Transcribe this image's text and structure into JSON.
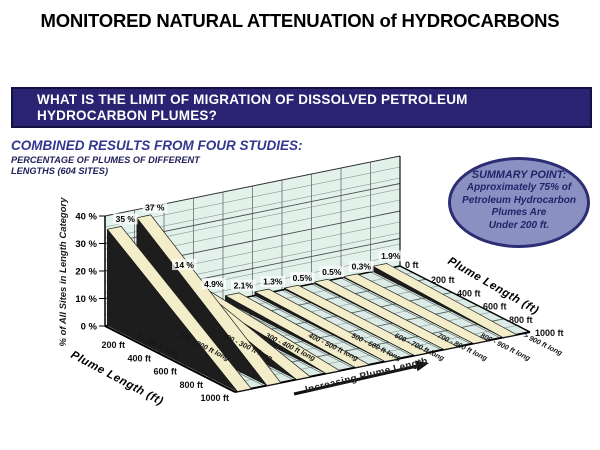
{
  "slide": {
    "title": "MONITORED NATURAL ATTENUATION of HYDROCARBONS",
    "question_banner": {
      "line1": "WHAT IS THE LIMIT OF MIGRATION OF DISSOLVED PETROLEUM",
      "line2": "HYDROCARBON PLUMES?",
      "bg_color": "#2a2372",
      "text_color": "#ffffff"
    },
    "subtitle": "COMBINED RESULTS FROM FOUR STUDIES:",
    "chart_heading_line1": "PERCENTAGE OF PLUMES OF DIFFERENT",
    "chart_heading_line2": "LENGTHS (604 SITES)",
    "summary_callout": {
      "lines": [
        "SUMMARY POINT:",
        "Approximately 75% of",
        "Petroleum Hydrocarbon",
        "Plumes Are",
        "Under 200 ft."
      ],
      "fill": "#8b90c3",
      "border_color": "#2c2d72",
      "text_color": "#232368"
    }
  },
  "chart_data": {
    "type": "bar",
    "projection": "3d-ribbon",
    "title": "PERCENTAGE OF PLUMES OF DIFFERENT LENGTHS (604 SITES)",
    "categories": [
      "0 - 100 ft long",
      "100 - 200 ft long",
      "200 - 300 ft long",
      "300 - 400 ft long",
      "400 - 500 ft long",
      "500 - 600 ft long",
      "600 - 700 ft long",
      "700 - 800 ft long",
      "800 - 900 ft long",
      "> 900 ft long"
    ],
    "values": [
      35,
      37,
      14,
      4.9,
      2.1,
      1.3,
      0.5,
      0.5,
      0.3,
      1.9
    ],
    "value_labels": [
      "35 %",
      "37 %",
      "14 %",
      "4.9%",
      "2.1%",
      "1.3%",
      "0.5%",
      "0.5%",
      "0.3%",
      "1.9%"
    ],
    "ylabel": "% of All Sites in Length Category",
    "y_tick_labels": [
      "0 %",
      "10 %",
      "20 %",
      "30 %",
      "40 %"
    ],
    "ylim": [
      0,
      40
    ],
    "depth_axis": {
      "title_left": "Plume Length (ft)",
      "title_right": "Plume Length (ft)",
      "left_tick_labels": [
        "200 ft",
        "400 ft",
        "600 ft",
        "800 ft",
        "1000 ft"
      ],
      "right_tick_labels": [
        "0 ft",
        "200 ft",
        "400 ft",
        "600 ft",
        "800 ft",
        "1000 ft"
      ],
      "range_ft": [
        0,
        1000
      ]
    },
    "floor_annotation": "Increasing Plume Length",
    "grid": true,
    "legend": "none",
    "colors": {
      "wall": "#e3f1eb",
      "floor": "#dcebe5",
      "ribbon_top": "#f3eec9",
      "ribbon_back": "#2e2e2e",
      "ribbon_side": "#1d1d1d",
      "grid_major": "#4a4a4a",
      "grid_minor": "#8a9a93",
      "axis": "#000000"
    }
  }
}
